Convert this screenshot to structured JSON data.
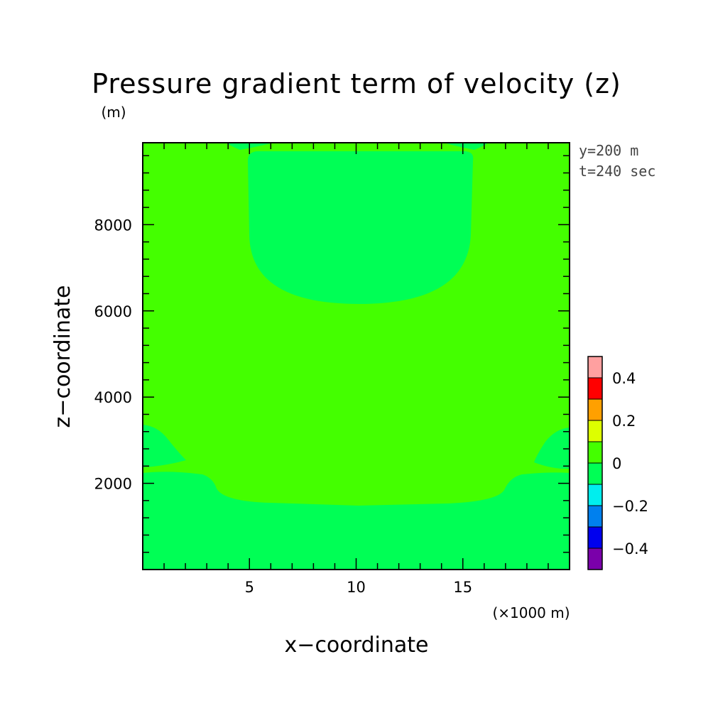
{
  "chart_data": {
    "type": "heatmap",
    "title": "Pressure gradient term of velocity (z)",
    "yunit": "(m)",
    "xunit": "(×1000 m)",
    "xlabel": "x−coordinate",
    "ylabel": "z−coordinate",
    "annotations": [
      "y=200 m",
      "t=240 sec"
    ],
    "xlim": [
      0,
      20
    ],
    "ylim": [
      0,
      9900
    ],
    "xticks": [
      5,
      10,
      15
    ],
    "xtick_labels": [
      "5",
      "10",
      "15"
    ],
    "yticks": [
      2000,
      4000,
      6000,
      8000
    ],
    "ytick_labels": [
      "2000",
      "4000",
      "6000",
      "8000"
    ],
    "grid": false,
    "colorbar": {
      "levels": [
        -0.5,
        -0.4,
        -0.3,
        -0.2,
        -0.1,
        0,
        0.1,
        0.2,
        0.3,
        0.4,
        0.5
      ],
      "colors": [
        "#7a00aa",
        "#0000ee",
        "#0080ee",
        "#00eeee",
        "#00ff55",
        "#44ff00",
        "#ddff00",
        "#ffa000",
        "#ff0000",
        "#ffa0a0"
      ],
      "labels": [
        "−0.4",
        "−0.2",
        "0",
        "0.2",
        "0.4"
      ],
      "label_values": [
        -0.4,
        -0.2,
        0,
        0.2,
        0.4
      ]
    },
    "background_interval": [
      0,
      0.1
    ],
    "regions": [
      {
        "name": "upper-central-cell",
        "interval": [
          -0.1,
          0
        ],
        "color": "#00ff55"
      },
      {
        "name": "lower-layer",
        "interval": [
          -0.1,
          0
        ],
        "color": "#00ff55"
      },
      {
        "name": "left-edge-lobe",
        "interval": [
          -0.1,
          0
        ],
        "color": "#00ff55"
      },
      {
        "name": "right-edge-lobe",
        "interval": [
          -0.1,
          0
        ],
        "color": "#00ff55"
      },
      {
        "name": "top-left-strip",
        "interval": [
          -0.1,
          0
        ],
        "color": "#00ff55"
      },
      {
        "name": "top-right-strip",
        "interval": [
          -0.1,
          0
        ],
        "color": "#00ff55"
      }
    ]
  }
}
